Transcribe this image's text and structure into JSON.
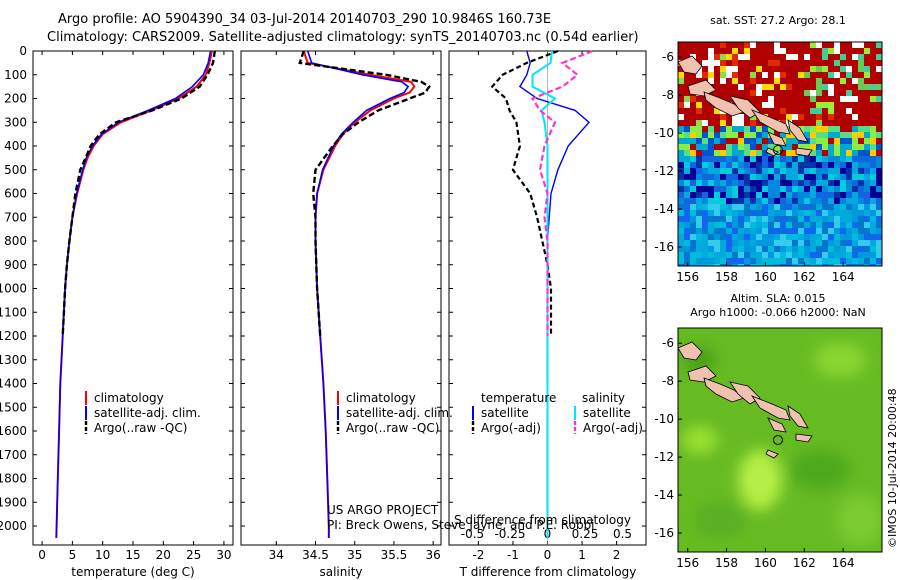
{
  "title": {
    "line1": "Argo profile: AO 5904390_34 03-Jul-2014 20140703_290 10.9846S 160.73E",
    "line2": "Climatology: CARS2009. Satellite-adjusted climatology: synTS_20140703.nc (0.54d earlier)"
  },
  "colors": {
    "climatology": "#ff0000",
    "satellite": "#0000ff",
    "argo": "#000000",
    "salinity_sat": "#00e5ff",
    "salinity_argo": "#ff33cc"
  },
  "depth_ticks": [
    0,
    100,
    200,
    300,
    400,
    500,
    600,
    700,
    800,
    900,
    1000,
    1100,
    1200,
    1300,
    1400,
    1500,
    1600,
    1700,
    1800,
    1900,
    2000
  ],
  "legend_profile": {
    "climatology": "climatology",
    "satellite": "satellite-adj. clim.",
    "argo": "Argo(..raw -QC)"
  },
  "legend_diff": {
    "temperature_head": "temperature",
    "salinity_head": "salinity",
    "satellite": "satellite",
    "argo_t": "Argo(-adj)",
    "argo_s": "Argo(-adj)"
  },
  "credit": {
    "line1": "US ARGO PROJECT",
    "line2": "PI: Breck Owens, Steve Jayne, and P.E. Robbi"
  },
  "chart_data": [
    {
      "type": "line",
      "name": "temperature-profile",
      "xlabel": "temperature (deg C)",
      "ylabel": "depth",
      "xlim": [
        -1.5,
        31.5
      ],
      "ylim": [
        2080,
        0
      ],
      "xticks": [
        0,
        5,
        10,
        15,
        20,
        25,
        30
      ],
      "depth": [
        0,
        50,
        100,
        150,
        200,
        250,
        300,
        350,
        400,
        450,
        500,
        600,
        700,
        800,
        900,
        1000,
        1200,
        1400,
        1600,
        1800,
        2000,
        2050
      ],
      "series": [
        {
          "name": "climatology",
          "values": [
            28.0,
            27.6,
            27.0,
            25.5,
            22.5,
            18.0,
            13.0,
            10.0,
            8.5,
            7.5,
            6.8,
            5.8,
            5.0,
            4.5,
            4.1,
            3.8,
            3.4,
            3.0,
            2.8,
            2.6,
            2.4,
            2.35
          ]
        },
        {
          "name": "satellite-adj. clim.",
          "values": [
            27.8,
            27.4,
            26.6,
            24.8,
            22.0,
            17.5,
            12.6,
            9.8,
            8.3,
            7.3,
            6.7,
            5.7,
            5.0,
            4.5,
            4.1,
            3.8,
            3.4,
            3.0,
            2.8,
            2.6,
            2.4,
            2.35
          ]
        },
        {
          "name": "Argo(..raw -QC)",
          "values": [
            28.5,
            28.2,
            27.3,
            26.0,
            23.0,
            18.2,
            12.2,
            9.5,
            8.0,
            7.2,
            6.3,
            5.5,
            5.0,
            4.5,
            4.1,
            3.8,
            3.4,
            null,
            null,
            null,
            null,
            null
          ]
        }
      ]
    },
    {
      "type": "line",
      "name": "salinity-profile",
      "xlabel": "salinity",
      "ylabel": "depth",
      "xlim": [
        33.55,
        36.1
      ],
      "ylim": [
        2080,
        0
      ],
      "xticks": [
        34,
        34.5,
        35,
        35.5,
        36
      ],
      "xticklabels": [
        "34",
        "34.5",
        "35",
        "35.5",
        "36"
      ],
      "depth": [
        0,
        50,
        100,
        130,
        150,
        175,
        200,
        250,
        300,
        350,
        400,
        500,
        600,
        700,
        800,
        900,
        1000,
        1200,
        1400,
        1600,
        1800,
        2000,
        2050
      ],
      "series": [
        {
          "name": "climatology",
          "values": [
            34.35,
            34.4,
            35.2,
            35.72,
            35.76,
            35.7,
            35.5,
            35.2,
            35.0,
            34.85,
            34.75,
            34.6,
            34.52,
            34.5,
            34.5,
            34.51,
            34.52,
            34.56,
            34.6,
            34.63,
            34.65,
            34.67,
            34.67
          ]
        },
        {
          "name": "satellite-adj. clim.",
          "values": [
            34.4,
            34.45,
            35.1,
            35.6,
            35.68,
            35.63,
            35.45,
            35.15,
            34.98,
            34.83,
            34.73,
            34.59,
            34.52,
            34.5,
            34.5,
            34.51,
            34.52,
            34.56,
            34.6,
            34.63,
            34.65,
            34.67,
            34.67
          ]
        },
        {
          "name": "Argo(..raw -QC)",
          "values": [
            34.35,
            34.3,
            35.4,
            35.85,
            35.95,
            35.9,
            35.7,
            35.3,
            35.05,
            34.85,
            34.72,
            34.5,
            34.47,
            34.5,
            34.5,
            34.51,
            34.52,
            34.56,
            null,
            null,
            null,
            null,
            null
          ]
        }
      ]
    },
    {
      "type": "line",
      "name": "difference-from-climatology",
      "xlabel": "T difference from climatology",
      "xlabel2": "S difference from climatology",
      "xlim": [
        -2.85,
        2.85
      ],
      "ylim": [
        2080,
        0
      ],
      "xticks": [
        -2,
        -1,
        0,
        1,
        2
      ],
      "sticks": [
        -0.5,
        -0.25,
        0,
        0.25,
        0.5
      ],
      "sticklabels": [
        "-0.5",
        "-0.25",
        "0",
        "0.25",
        "0.5"
      ],
      "depth": [
        0,
        50,
        100,
        150,
        200,
        250,
        300,
        400,
        500,
        600,
        700,
        800,
        900,
        1000,
        1200,
        1400,
        1600,
        1800,
        2000,
        2050
      ],
      "series": [
        {
          "name": "temperature satellite",
          "values": [
            -0.6,
            -0.5,
            -0.6,
            -0.8,
            -0.3,
            0.8,
            1.2,
            0.6,
            0.3,
            0.1,
            0.05,
            0.0,
            0.0,
            0.0,
            0.0,
            0.0,
            0.0,
            0.0,
            0.0,
            0.0
          ]
        },
        {
          "name": "temperature Argo(-adj)",
          "values": [
            0.3,
            -0.6,
            -1.3,
            -1.6,
            -1.2,
            -1.1,
            -0.9,
            -0.8,
            -1.0,
            -0.5,
            -0.3,
            -0.15,
            0.0,
            0.1,
            0.1,
            null,
            null,
            null,
            null,
            null
          ]
        },
        {
          "name": "salinity satellite",
          "values": [
            0.03,
            0.02,
            -0.1,
            -0.1,
            0.05,
            -0.04,
            -0.02,
            0.0,
            0.0,
            0.0,
            0.0,
            0.0,
            0.0,
            0.0,
            0.0,
            0.0,
            0.0,
            0.0,
            0.0,
            0.0
          ]
        },
        {
          "name": "salinity Argo(-adj)",
          "values": [
            0.3,
            0.1,
            0.2,
            0.1,
            -0.1,
            -0.05,
            0.05,
            -0.02,
            -0.05,
            0.0,
            -0.02,
            0.0,
            0.0,
            0.0,
            0.0,
            null,
            null,
            null,
            null,
            null
          ]
        }
      ]
    },
    {
      "type": "heatmap",
      "name": "sst-map",
      "title": "sat. SST: 27.2 Argo: 28.1",
      "xlim": [
        155.5,
        166
      ],
      "ylim": [
        -17,
        -5.2
      ],
      "xticks": [
        156,
        158,
        160,
        162,
        164
      ],
      "yticks": [
        -6,
        -8,
        -10,
        -12,
        -14,
        -16
      ],
      "argo_position": [
        160.73,
        -10.98
      ]
    },
    {
      "type": "heatmap",
      "name": "sla-map",
      "title": "Altim. SLA: 0.015",
      "subtitle": "Argo h1000: -0.066 h2000: NaN",
      "xlim": [
        155.5,
        166
      ],
      "ylim": [
        -17,
        -5.2
      ],
      "xticks": [
        156,
        158,
        160,
        162,
        164
      ],
      "yticks": [
        -6,
        -8,
        -10,
        -12,
        -14,
        -16
      ],
      "argo_position": [
        160.73,
        -10.98
      ]
    }
  ],
  "vertical_stamp": "©IMOS 10-Jul-2014 20:00:48"
}
